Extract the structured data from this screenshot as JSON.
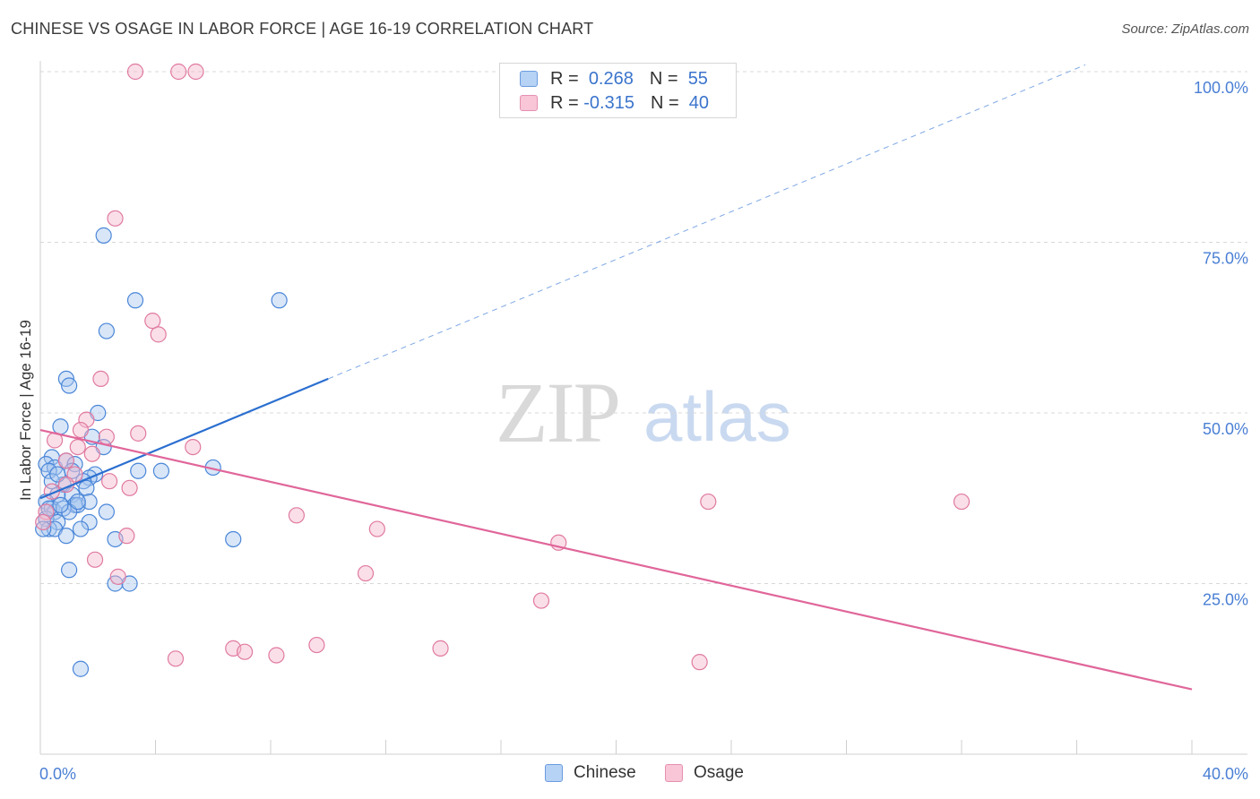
{
  "header": {
    "title": "CHINESE VS OSAGE IN LABOR FORCE | AGE 16-19 CORRELATION CHART",
    "source": "Source: ZipAtlas.com"
  },
  "watermark": {
    "zip": "ZIP",
    "atlas": "atlas"
  },
  "legend": {
    "rows": [
      {
        "r_label": "R =",
        "r_value": "0.268",
        "n_label": "N =",
        "n_value": "55"
      },
      {
        "r_label": "R =",
        "r_value": "-0.315",
        "n_label": "N =",
        "n_value": "40"
      }
    ]
  },
  "bottom_legend": {
    "chinese": "Chinese",
    "osage": "Osage"
  },
  "colors": {
    "chinese_fill": "#a8c8f0",
    "chinese_stroke": "#4a86d8",
    "chinese_line": "#2b6fd0",
    "osage_fill": "#f5b8cc",
    "osage_stroke": "#e07aa0",
    "osage_line": "#e0669a",
    "grid": "#d8d8d8",
    "axis_text": "#4a7fd4"
  },
  "chart_data": {
    "type": "scatter",
    "title": "CHINESE VS OSAGE IN LABOR FORCE | AGE 16-19 CORRELATION CHART",
    "xlabel": "",
    "ylabel": "In Labor Force | Age 16-19",
    "xlim": [
      0,
      40
    ],
    "ylim": [
      0,
      103
    ],
    "x_tick_labels": [
      "0.0%",
      "40.0%"
    ],
    "y_ticks": [
      25,
      50,
      75,
      100
    ],
    "y_tick_labels": [
      "25.0%",
      "50.0%",
      "75.0%",
      "100.0%"
    ],
    "grid": "horizontal dashed",
    "legend_position": "top-center",
    "series": [
      {
        "name": "Chinese",
        "r": 0.268,
        "n": 55,
        "trend_solid": [
          [
            0,
            37.5
          ],
          [
            10,
            55.0
          ]
        ],
        "trend_dashed": [
          [
            10,
            55.0
          ],
          [
            36.3,
            101.0
          ]
        ],
        "points": [
          [
            2.2,
            76
          ],
          [
            3.3,
            66.5
          ],
          [
            8.3,
            66.5
          ],
          [
            2.3,
            62
          ],
          [
            0.9,
            55
          ],
          [
            1.0,
            54
          ],
          [
            2.0,
            50
          ],
          [
            0.7,
            48
          ],
          [
            1.8,
            46.5
          ],
          [
            2.2,
            45
          ],
          [
            0.4,
            43.5
          ],
          [
            0.2,
            42.5
          ],
          [
            0.5,
            42
          ],
          [
            0.9,
            43
          ],
          [
            1.2,
            42.5
          ],
          [
            1.1,
            41.5
          ],
          [
            0.3,
            41.5
          ],
          [
            1.9,
            41
          ],
          [
            1.7,
            40.5
          ],
          [
            3.4,
            41.5
          ],
          [
            4.2,
            41.5
          ],
          [
            6.0,
            42
          ],
          [
            0.8,
            39.5
          ],
          [
            1.5,
            40
          ],
          [
            1.6,
            39
          ],
          [
            1.1,
            38
          ],
          [
            0.6,
            38
          ],
          [
            0.2,
            37
          ],
          [
            1.2,
            36.5
          ],
          [
            1.3,
            36.5
          ],
          [
            1.7,
            37
          ],
          [
            0.4,
            36
          ],
          [
            0.5,
            35.5
          ],
          [
            0.8,
            36
          ],
          [
            1.0,
            35.5
          ],
          [
            2.3,
            35.5
          ],
          [
            0.2,
            34.5
          ],
          [
            0.6,
            34
          ],
          [
            1.7,
            34
          ],
          [
            0.3,
            33
          ],
          [
            0.5,
            33
          ],
          [
            1.4,
            33
          ],
          [
            0.9,
            32
          ],
          [
            2.6,
            31.5
          ],
          [
            6.7,
            31.5
          ],
          [
            1.0,
            27
          ],
          [
            2.6,
            25
          ],
          [
            3.1,
            25
          ],
          [
            1.4,
            12.5
          ],
          [
            0.1,
            33
          ],
          [
            0.3,
            36
          ],
          [
            1.3,
            37
          ],
          [
            0.7,
            36.5
          ],
          [
            0.4,
            40
          ],
          [
            0.6,
            41
          ]
        ]
      },
      {
        "name": "Osage",
        "r": -0.315,
        "n": 40,
        "trend_solid": [
          [
            0,
            47.5
          ],
          [
            40,
            9.5
          ]
        ],
        "points": [
          [
            3.3,
            100
          ],
          [
            4.8,
            100
          ],
          [
            5.4,
            100
          ],
          [
            2.6,
            78.5
          ],
          [
            3.9,
            63.5
          ],
          [
            4.1,
            61.5
          ],
          [
            2.1,
            55
          ],
          [
            1.6,
            49
          ],
          [
            1.4,
            47.5
          ],
          [
            0.5,
            46
          ],
          [
            2.3,
            46.5
          ],
          [
            3.4,
            47
          ],
          [
            1.3,
            45
          ],
          [
            5.3,
            45
          ],
          [
            1.8,
            44
          ],
          [
            0.9,
            43
          ],
          [
            1.2,
            41
          ],
          [
            2.4,
            40
          ],
          [
            0.9,
            39.5
          ],
          [
            3.1,
            39
          ],
          [
            0.4,
            38.5
          ],
          [
            0.2,
            35.5
          ],
          [
            8.9,
            35
          ],
          [
            23.2,
            37
          ],
          [
            32.0,
            37
          ],
          [
            11.7,
            33
          ],
          [
            18.0,
            31
          ],
          [
            3.0,
            32
          ],
          [
            1.9,
            28.5
          ],
          [
            2.7,
            26
          ],
          [
            11.3,
            26.5
          ],
          [
            17.4,
            22.5
          ],
          [
            6.7,
            15.5
          ],
          [
            7.1,
            15
          ],
          [
            8.2,
            14.5
          ],
          [
            9.6,
            16
          ],
          [
            13.9,
            15.5
          ],
          [
            4.7,
            14
          ],
          [
            22.9,
            13.5
          ],
          [
            0.1,
            34
          ]
        ]
      }
    ]
  }
}
